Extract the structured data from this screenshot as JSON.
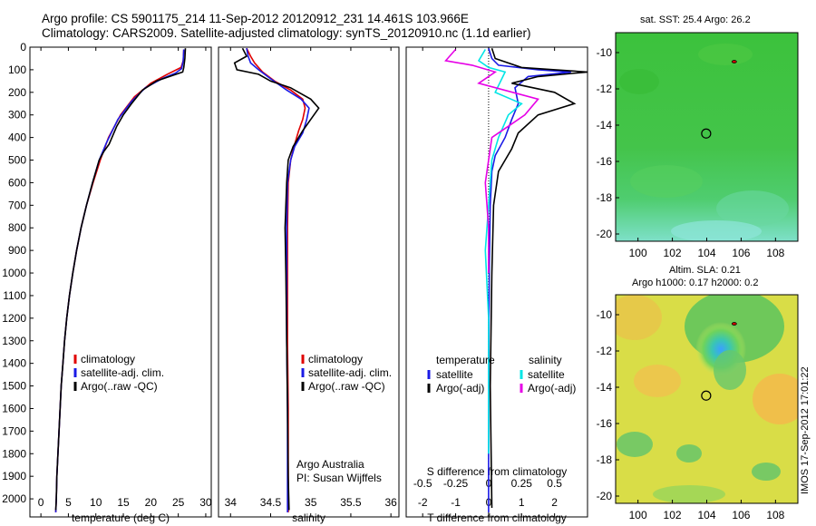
{
  "header": {
    "line1": "Argo profile: CS 5901175_214 11-Sep-2012 20120912_231 14.461S 103.966E",
    "line2": "Climatology: CARS2009. Satellite-adjusted climatology: synTS_20120910.nc (1.1d earlier)"
  },
  "colors": {
    "climatology": "#e00000",
    "satellite": "#1a1ae6",
    "argo": "#000000",
    "cyan": "#00e5e5",
    "magenta": "#e600e6"
  },
  "chart_data": [
    {
      "type": "line",
      "id": "temperature",
      "xlabel": "temperature (deg C)",
      "ylabel": "",
      "xlim": [
        -2,
        31
      ],
      "ylim": [
        2080,
        0
      ],
      "xticks": [
        0,
        5,
        10,
        15,
        20,
        25,
        30
      ],
      "yticks": [
        0,
        100,
        200,
        300,
        400,
        500,
        600,
        700,
        800,
        900,
        1000,
        1100,
        1200,
        1300,
        1400,
        1500,
        1600,
        1700,
        1800,
        1900,
        2000
      ],
      "legend": [
        "climatology",
        "satellite-adj. clim.",
        "Argo(..raw -QC)"
      ],
      "series": [
        {
          "name": "climatology",
          "color": "#e00000",
          "points": [
            [
              26,
              10
            ],
            [
              25.9,
              60
            ],
            [
              25.5,
              90
            ],
            [
              23,
              120
            ],
            [
              20,
              160
            ],
            [
              17,
              220
            ],
            [
              14.5,
              300
            ],
            [
              12.3,
              400
            ],
            [
              10.8,
              500
            ],
            [
              9.5,
              600
            ],
            [
              8.3,
              700
            ],
            [
              7.3,
              800
            ],
            [
              6.5,
              900
            ],
            [
              5.8,
              1000
            ],
            [
              5.2,
              1100
            ],
            [
              4.7,
              1200
            ],
            [
              4.3,
              1300
            ],
            [
              4,
              1400
            ],
            [
              3.7,
              1500
            ],
            [
              3.5,
              1600
            ],
            [
              3.3,
              1700
            ],
            [
              3.1,
              1800
            ],
            [
              2.9,
              1900
            ],
            [
              2.8,
              2000
            ],
            [
              2.7,
              2060
            ]
          ]
        },
        {
          "name": "satellite-adj. clim.",
          "color": "#1a1ae6",
          "points": [
            [
              26,
              10
            ],
            [
              25.9,
              60
            ],
            [
              25.6,
              95
            ],
            [
              24.5,
              115
            ],
            [
              22,
              140
            ],
            [
              19,
              180
            ],
            [
              16.5,
              240
            ],
            [
              14,
              320
            ],
            [
              12,
              420
            ],
            [
              10.6,
              500
            ],
            [
              9.4,
              600
            ],
            [
              8.3,
              700
            ],
            [
              7.3,
              800
            ],
            [
              6.5,
              900
            ],
            [
              5.8,
              1000
            ],
            [
              5.2,
              1100
            ],
            [
              4.7,
              1200
            ],
            [
              4.3,
              1300
            ],
            [
              4,
              1400
            ],
            [
              3.7,
              1500
            ],
            [
              3.5,
              1600
            ],
            [
              3.3,
              1700
            ],
            [
              3.1,
              1800
            ],
            [
              2.9,
              1900
            ],
            [
              2.8,
              2000
            ],
            [
              2.7,
              2060
            ]
          ]
        },
        {
          "name": "Argo(..raw -QC)",
          "color": "#000000",
          "points": [
            [
              26.3,
              5
            ],
            [
              26.2,
              50
            ],
            [
              26,
              90
            ],
            [
              25.8,
              110
            ],
            [
              24,
              125
            ],
            [
              21,
              150
            ],
            [
              18.5,
              190
            ],
            [
              16.5,
              250
            ],
            [
              15,
              300
            ],
            [
              13.8,
              350
            ],
            [
              12.4,
              430
            ],
            [
              11.5,
              460
            ],
            [
              10.6,
              500
            ],
            [
              9.4,
              600
            ],
            [
              8.3,
              700
            ],
            [
              7.3,
              800
            ],
            [
              6.5,
              900
            ],
            [
              5.8,
              1000
            ],
            [
              5.2,
              1100
            ],
            [
              4.7,
              1200
            ],
            [
              4.3,
              1300
            ],
            [
              4,
              1400
            ],
            [
              3.7,
              1500
            ],
            [
              3.5,
              1600
            ],
            [
              3.3,
              1700
            ],
            [
              3.1,
              1800
            ],
            [
              2.9,
              1900
            ],
            [
              2.8,
              2000
            ],
            [
              2.7,
              2050
            ]
          ]
        }
      ]
    },
    {
      "type": "line",
      "id": "salinity",
      "xlabel": "salinity",
      "xlim": [
        33.85,
        36.1
      ],
      "ylim": [
        2080,
        0
      ],
      "xticks": [
        34,
        34.5,
        35,
        35.5,
        36
      ],
      "legend": [
        "climatology",
        "satellite-adj. clim.",
        "Argo(..raw -QC)"
      ],
      "annotation": [
        "Argo Australia",
        "PI: Susan Wijffels"
      ],
      "series": [
        {
          "name": "climatology",
          "color": "#e00000",
          "points": [
            [
              34.2,
              5
            ],
            [
              34.25,
              40
            ],
            [
              34.3,
              70
            ],
            [
              34.4,
              110
            ],
            [
              34.55,
              150
            ],
            [
              34.75,
              190
            ],
            [
              34.9,
              230
            ],
            [
              34.93,
              270
            ],
            [
              34.9,
              320
            ],
            [
              34.85,
              370
            ],
            [
              34.8,
              430
            ],
            [
              34.75,
              500
            ],
            [
              34.72,
              600
            ],
            [
              34.71,
              800
            ],
            [
              34.71,
              1000
            ],
            [
              34.71,
              1300
            ],
            [
              34.72,
              1600
            ],
            [
              34.72,
              1900
            ],
            [
              34.72,
              2060
            ]
          ]
        },
        {
          "name": "satellite-adj. clim.",
          "color": "#1a1ae6",
          "points": [
            [
              34.2,
              5
            ],
            [
              34.22,
              40
            ],
            [
              34.25,
              70
            ],
            [
              34.35,
              100
            ],
            [
              34.5,
              140
            ],
            [
              34.7,
              190
            ],
            [
              34.88,
              230
            ],
            [
              34.98,
              270
            ],
            [
              34.95,
              320
            ],
            [
              34.9,
              380
            ],
            [
              34.8,
              440
            ],
            [
              34.75,
              500
            ],
            [
              34.71,
              600
            ],
            [
              34.7,
              800
            ],
            [
              34.7,
              1000
            ],
            [
              34.7,
              1300
            ],
            [
              34.71,
              1600
            ],
            [
              34.71,
              1900
            ],
            [
              34.71,
              2060
            ]
          ]
        },
        {
          "name": "Argo(..raw -QC)",
          "color": "#000000",
          "points": [
            [
              34.15,
              5
            ],
            [
              34.2,
              40
            ],
            [
              34.05,
              70
            ],
            [
              34.08,
              100
            ],
            [
              34.35,
              120
            ],
            [
              34.5,
              150
            ],
            [
              34.75,
              180
            ],
            [
              34.85,
              200
            ],
            [
              35.0,
              230
            ],
            [
              35.1,
              270
            ],
            [
              35.02,
              310
            ],
            [
              34.9,
              370
            ],
            [
              34.78,
              440
            ],
            [
              34.72,
              500
            ],
            [
              34.7,
              600
            ],
            [
              34.68,
              800
            ],
            [
              34.69,
              1000
            ],
            [
              34.7,
              1300
            ],
            [
              34.71,
              1600
            ],
            [
              34.72,
              1900
            ],
            [
              34.73,
              2050
            ]
          ]
        }
      ]
    },
    {
      "type": "line",
      "id": "difference",
      "xlabel": "T difference from climatology",
      "xlabel_top": "S difference from climatology",
      "xlim": [
        -2.5,
        3
      ],
      "ylim": [
        2080,
        0
      ],
      "xticks": [
        -2,
        -1,
        0,
        1,
        2
      ],
      "xticks_top": [
        -0.5,
        -0.25,
        0,
        0.25,
        0.5
      ],
      "xticks_top_labels": [
        "-0.5",
        "-0.25",
        "0",
        "0.25",
        "0.5"
      ],
      "legend_left_title": "temperature",
      "legend_right_title": "salinity",
      "legend_left": [
        "satellite",
        "Argo(-adj)"
      ],
      "legend_right": [
        "satellite",
        "Argo(-adj)"
      ],
      "series": [
        {
          "name": "temperature satellite",
          "color": "#1a1ae6",
          "points": [
            [
              0,
              5
            ],
            [
              0.1,
              50
            ],
            [
              0.3,
              80
            ],
            [
              1.5,
              100
            ],
            [
              2.5,
              110
            ],
            [
              1.2,
              130
            ],
            [
              0.8,
              180
            ],
            [
              0.9,
              250
            ],
            [
              0.7,
              320
            ],
            [
              0.5,
              400
            ],
            [
              0.2,
              480
            ],
            [
              0.1,
              550
            ],
            [
              0.05,
              700
            ],
            [
              0.02,
              1000
            ],
            [
              0,
              1500
            ],
            [
              0,
              2060
            ]
          ]
        },
        {
          "name": "temperature Argo(-adj)",
          "color": "#000000",
          "points": [
            [
              0.1,
              5
            ],
            [
              0.2,
              50
            ],
            [
              1,
              90
            ],
            [
              3,
              110
            ],
            [
              1.5,
              130
            ],
            [
              0.7,
              160
            ],
            [
              2,
              200
            ],
            [
              2.6,
              250
            ],
            [
              1.5,
              300
            ],
            [
              0.9,
              380
            ],
            [
              0.7,
              450
            ],
            [
              0.3,
              550
            ],
            [
              0.15,
              700
            ],
            [
              0.1,
              1000
            ],
            [
              0.05,
              1500
            ],
            [
              0.1,
              2040
            ]
          ]
        },
        {
          "name": "salinity satellite",
          "color": "#00e5e5",
          "points": [
            [
              -0.1,
              10
            ],
            [
              -0.3,
              60
            ],
            [
              0,
              90
            ],
            [
              0.5,
              110
            ],
            [
              0.2,
              200
            ],
            [
              1,
              250
            ],
            [
              0.6,
              300
            ],
            [
              0.3,
              400
            ],
            [
              0.1,
              500
            ],
            [
              0,
              700
            ],
            [
              -0.1,
              900
            ],
            [
              0,
              1200
            ],
            [
              0,
              1800
            ]
          ]
        },
        {
          "name": "salinity Argo(-adj)",
          "color": "#e600e6",
          "points": [
            [
              -1,
              10
            ],
            [
              -1.3,
              60
            ],
            [
              -0.5,
              80
            ],
            [
              0.2,
              110
            ],
            [
              -0.3,
              160
            ],
            [
              1.5,
              230
            ],
            [
              1.1,
              300
            ],
            [
              0.6,
              350
            ],
            [
              0.1,
              400
            ],
            [
              0,
              500
            ],
            [
              -0.1,
              600
            ],
            [
              0,
              800
            ],
            [
              0,
              1000
            ]
          ]
        }
      ]
    }
  ],
  "maps": {
    "sst_title": "sat. SST: 25.4  Argo: 26.2",
    "sla_title1": "Altim. SLA: 0.21",
    "sla_title2": "Argo h1000: 0.17  h2000: 0.2",
    "xlim": [
      98.7,
      109.3
    ],
    "ylim": [
      -20.4,
      -8.9
    ],
    "xticks": [
      100,
      102,
      104,
      106,
      108
    ],
    "yticks": [
      -10,
      -12,
      -14,
      -16,
      -18,
      -20
    ],
    "marker": [
      103.966,
      -14.461
    ],
    "secondary_marker": [
      105.6,
      -10.5
    ]
  },
  "footer": {
    "stamp": "IMOS 17-Sep-2012 17:01:22"
  }
}
